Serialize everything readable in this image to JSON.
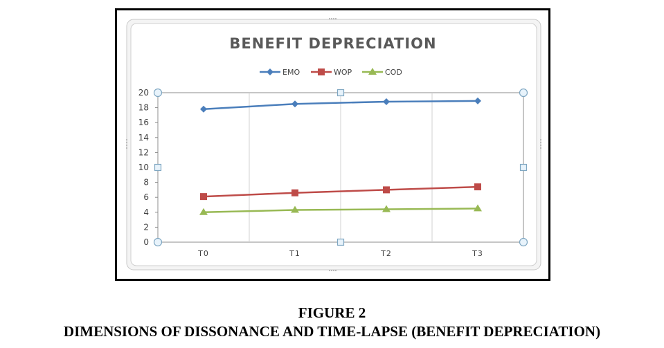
{
  "figure_number": "FIGURE 2",
  "figure_title": "DIMENSIONS OF DISSONANCE AND TIME-LAPSE (BENEFIT DEPRECIATION)",
  "chart_data": {
    "type": "line",
    "title": "BENEFIT DEPRECIATION",
    "xlabel": "",
    "ylabel": "",
    "categories": [
      "T0",
      "T1",
      "T2",
      "T3"
    ],
    "ylim": [
      0,
      20
    ],
    "yticks": [
      "0",
      "2",
      "4",
      "6",
      "8",
      "10",
      "12",
      "14",
      "16",
      "18",
      "20"
    ],
    "legend": "top",
    "grid": "vertical",
    "series": [
      {
        "name": "EMO",
        "values": [
          17.8,
          18.5,
          18.8,
          18.9
        ],
        "color": "#4a7ebb",
        "marker": "diamond"
      },
      {
        "name": "WOP",
        "values": [
          6.1,
          6.6,
          7.0,
          7.4
        ],
        "color": "#be4b48",
        "marker": "square"
      },
      {
        "name": "COD",
        "values": [
          4.0,
          4.3,
          4.4,
          4.5
        ],
        "color": "#98b954",
        "marker": "triangle"
      }
    ]
  }
}
